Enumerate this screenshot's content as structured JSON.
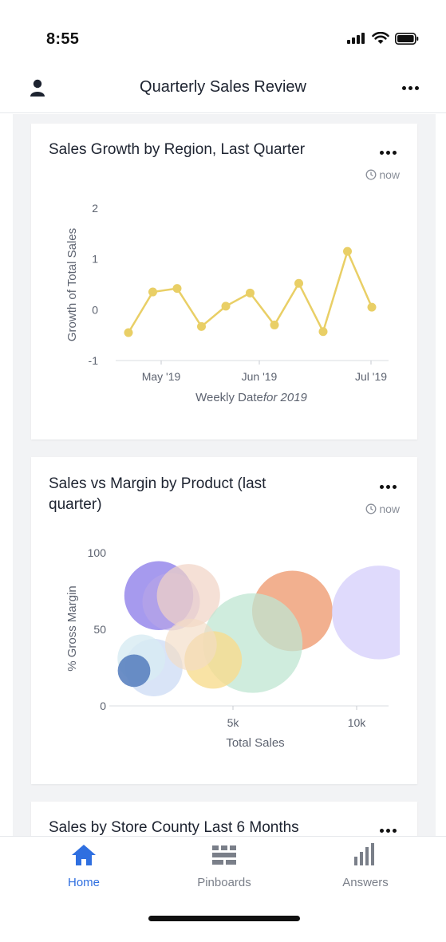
{
  "status_bar": {
    "time": "8:55"
  },
  "header": {
    "title": "Quarterly Sales Review"
  },
  "cards": [
    {
      "title": "Sales Growth by Region, Last Quarter",
      "timestamp": "now",
      "chart_data": {
        "type": "line",
        "title": "",
        "ylabel": "Growth of Total Sales",
        "xlabel": "Weekly Date",
        "xlabel_suffix": "for 2019",
        "ylim": [
          -1,
          2
        ],
        "y_ticks": [
          "2",
          "1",
          "0",
          "-1"
        ],
        "x_ticks": [
          "May '19",
          "Jun '19",
          "Jul '19"
        ],
        "series": [
          {
            "values": [
              -0.45,
              0.35,
              0.42,
              -0.33,
              0.07,
              0.33,
              -0.3,
              0.52,
              -0.43,
              1.15,
              0.05
            ]
          }
        ],
        "color": "#e9cf66"
      }
    },
    {
      "title_line1": "Sales vs Margin by Product (last",
      "title_line2": "quarter)",
      "timestamp": "now",
      "chart_data": {
        "type": "scatter",
        "title": "",
        "xlabel": "Total Sales",
        "ylabel": "% Gross Margin",
        "xlim": [
          0,
          11000
        ],
        "ylim": [
          0,
          100
        ],
        "x_ticks": [
          "5k",
          "10k"
        ],
        "y_ticks": [
          "100",
          "50",
          "0"
        ],
        "points": [
          {
            "x": 2000,
            "y": 72,
            "r": 36,
            "color": "#8878e8",
            "opacity": 0.75
          },
          {
            "x": 2500,
            "y": 68,
            "r": 30,
            "color": "#b9a7e6",
            "opacity": 0.55
          },
          {
            "x": 3200,
            "y": 72,
            "r": 33,
            "color": "#f1d3c4",
            "opacity": 0.7
          },
          {
            "x": 7400,
            "y": 62,
            "r": 42,
            "color": "#f0a27b",
            "opacity": 0.85
          },
          {
            "x": 10900,
            "y": 61,
            "r": 49,
            "color": "#d9d3fb",
            "opacity": 0.85
          },
          {
            "x": 5800,
            "y": 41,
            "r": 52,
            "color": "#bfe6d1",
            "opacity": 0.75
          },
          {
            "x": 4200,
            "y": 30,
            "r": 30,
            "color": "#f7dc8e",
            "opacity": 0.8
          },
          {
            "x": 1800,
            "y": 25,
            "r": 30,
            "color": "#c9d8f3",
            "opacity": 0.7
          },
          {
            "x": 1300,
            "y": 31,
            "r": 25,
            "color": "#d7ebf3",
            "opacity": 0.8
          },
          {
            "x": 3300,
            "y": 40,
            "r": 27,
            "color": "#f3dcc4",
            "opacity": 0.65
          },
          {
            "x": 1000,
            "y": 23,
            "r": 17,
            "color": "#5b82c0",
            "opacity": 0.9
          }
        ]
      }
    },
    {
      "title": "Sales by Store County Last 6 Months"
    }
  ],
  "tabs": [
    {
      "label": "Home",
      "active": true
    },
    {
      "label": "Pinboards",
      "active": false
    },
    {
      "label": "Answers",
      "active": false
    }
  ],
  "colors": {
    "accent": "#2f6fe0",
    "inactive": "#7a7f89"
  }
}
